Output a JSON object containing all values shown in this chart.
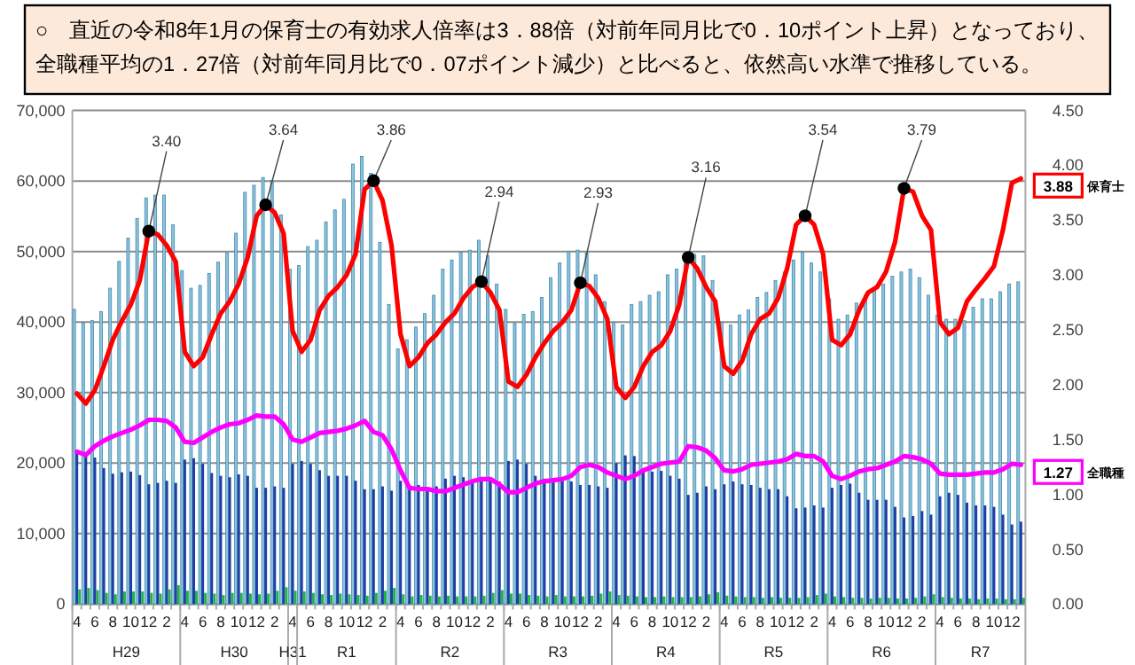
{
  "chart_data": {
    "type": "bar",
    "title": "○　直近の令和8年1月の保育士の有効求人倍率は3．88倍（対前年同月比で0．10ポイント上昇）となっており、全職種平均の1．27倍（対前年同月比で0．07ポイント減少）と比べると、依然高い水準で推移している。",
    "categories": [
      "4",
      null,
      "6",
      null,
      "8",
      null,
      "10",
      null,
      "12",
      null,
      "2",
      null,
      "4",
      null,
      "6",
      null,
      "8",
      null,
      "10",
      null,
      "12",
      null,
      "2",
      null,
      "4",
      null,
      "6",
      null,
      "8",
      null,
      "10",
      null,
      "12",
      null,
      "2",
      null,
      "4",
      null,
      "6",
      null,
      "8",
      null,
      "10",
      null,
      "12",
      null,
      "2",
      null,
      "4",
      null,
      "6",
      null,
      "8",
      null,
      "10",
      null,
      "12",
      null,
      "2",
      null,
      "4",
      null,
      "6",
      null,
      "8",
      null,
      "10",
      null,
      "12",
      null,
      "2",
      null,
      "4",
      null,
      "6",
      null,
      "8",
      null,
      "10",
      null,
      "12",
      null,
      "2",
      null,
      "4",
      null,
      "6",
      null,
      "8",
      null,
      "10",
      null,
      "12",
      null,
      "2",
      null,
      "4",
      null,
      "6",
      null,
      "8",
      null,
      "10",
      null,
      "12",
      null
    ],
    "annotations": [
      "H29",
      "H30",
      "H31",
      "R1",
      "R2",
      "R3",
      "R4",
      "R5",
      "R6",
      "R7"
    ],
    "ylim": [
      0,
      70000
    ],
    "yticks": [
      {
        "value": 0,
        "label": "0"
      },
      {
        "value": 10000,
        "label": "10,000"
      },
      {
        "value": 20000,
        "label": "20,000"
      },
      {
        "value": 30000,
        "label": "30,000"
      },
      {
        "value": 40000,
        "label": "40,000"
      },
      {
        "value": 50000,
        "label": "50,000"
      },
      {
        "value": 60000,
        "label": "60,000"
      },
      {
        "value": 70000,
        "label": "70,000"
      }
    ],
    "y2lim": [
      0,
      4.5
    ],
    "y2ticks": [
      {
        "value": 0,
        "label": "0.00"
      },
      {
        "value": 0.5,
        "label": "0.50"
      },
      {
        "value": 1,
        "label": "1.00"
      },
      {
        "value": 1.5,
        "label": "1.50"
      },
      {
        "value": 2,
        "label": "2.00"
      },
      {
        "value": 2.5,
        "label": "2.50"
      },
      {
        "value": 3,
        "label": "3.00"
      },
      {
        "value": 3.5,
        "label": "3.50"
      },
      {
        "value": 4,
        "label": "4.00"
      },
      {
        "value": 4.5,
        "label": "4.50"
      }
    ],
    "grid": "y",
    "legend": "right",
    "series": [
      {
        "color": "#8ec3da",
        "values": [
          41800,
          39900,
          40200,
          41500,
          44800,
          48600,
          51900,
          54700,
          57600,
          58000,
          58000,
          53800,
          47300,
          44800,
          45200,
          46900,
          48500,
          49800,
          52600,
          58400,
          59400,
          60500,
          60100,
          55200,
          47500,
          48000,
          50700,
          51600,
          54200,
          55900,
          57400,
          62400,
          63500,
          61100,
          51300,
          42500,
          36200,
          37500,
          39300,
          41200,
          43800,
          47500,
          48800,
          49900,
          50200,
          51600,
          49400,
          45400,
          41800,
          39800,
          41100,
          41500,
          43500,
          46300,
          48400,
          50000,
          50200,
          49800,
          46700,
          42900,
          40000,
          39600,
          42500,
          42900,
          43800,
          44300,
          46700,
          47500,
          49400,
          49600,
          49400,
          45900,
          40000,
          39600,
          41000,
          41700,
          43500,
          44200,
          45900,
          47100,
          48800,
          49900,
          48400,
          47100,
          43300,
          40400,
          41000,
          42700,
          43800,
          44800,
          45400,
          46500,
          47100,
          47500,
          46300,
          43800,
          41000,
          40400,
          40400,
          40200,
          42100,
          43300,
          43300,
          44300,
          45400,
          45700
        ]
      },
      {
        "color": "#1f3fa6",
        "values": [
          21500,
          21000,
          20800,
          19300,
          18500,
          18700,
          18800,
          18300,
          17000,
          17200,
          17500,
          17200,
          20500,
          20700,
          19900,
          18600,
          18200,
          18000,
          18400,
          18200,
          16500,
          16500,
          16700,
          16500,
          19900,
          20300,
          19900,
          19000,
          18200,
          18200,
          18200,
          17500,
          16300,
          16300,
          16700,
          16100,
          17500,
          16500,
          16900,
          16500,
          16700,
          17800,
          18200,
          18000,
          17400,
          17400,
          17500,
          17400,
          20300,
          20500,
          19900,
          18200,
          17800,
          17500,
          17500,
          17400,
          16900,
          16900,
          16700,
          16500,
          20000,
          21100,
          21000,
          19000,
          18800,
          18900,
          18200,
          17800,
          15500,
          15800,
          16700,
          16300,
          17000,
          17400,
          17000,
          16900,
          16500,
          16300,
          16300,
          15300,
          13600,
          13700,
          14000,
          13700,
          16500,
          16900,
          17100,
          15800,
          14800,
          14800,
          14800,
          13800,
          12300,
          12500,
          13200,
          12700,
          15300,
          15800,
          15500,
          14400,
          14000,
          14000,
          13800,
          12700,
          11300,
          11700
        ]
      },
      {
        "color": "#22b14c",
        "values": [
          2100,
          2300,
          2000,
          1600,
          1400,
          1800,
          1800,
          1800,
          1600,
          1500,
          2100,
          2700,
          1900,
          1900,
          1600,
          1500,
          1300,
          1600,
          1600,
          1500,
          1400,
          1500,
          1900,
          2400,
          1900,
          1800,
          1600,
          1400,
          1300,
          1500,
          1400,
          1300,
          1200,
          1600,
          1900,
          2300,
          1400,
          1100,
          1300,
          1200,
          1100,
          1200,
          1100,
          1100,
          1100,
          1200,
          1600,
          2000,
          1500,
          1500,
          1300,
          1200,
          1100,
          1300,
          1100,
          1100,
          1100,
          1200,
          1500,
          1800,
          1300,
          1200,
          1100,
          1000,
          1000,
          1100,
          1000,
          1000,
          1000,
          1100,
          1400,
          1700,
          1200,
          1100,
          1000,
          1000,
          900,
          1000,
          900,
          900,
          900,
          1000,
          1300,
          1500,
          1100,
          1000,
          900,
          900,
          800,
          900,
          900,
          800,
          800,
          900,
          1100,
          1400,
          1000,
          900,
          800,
          800,
          700,
          800,
          800,
          700,
          700,
          900
        ]
      },
      {
        "type": "line",
        "axis": "y2",
        "name": "保育士",
        "color": "#ff0000",
        "values": [
          1.92,
          1.83,
          1.95,
          2.17,
          2.41,
          2.58,
          2.73,
          2.95,
          3.4,
          3.37,
          3.27,
          3.12,
          2.3,
          2.17,
          2.25,
          2.46,
          2.65,
          2.76,
          2.92,
          3.16,
          3.54,
          3.64,
          3.57,
          3.38,
          2.49,
          2.3,
          2.41,
          2.68,
          2.81,
          2.89,
          3.0,
          3.19,
          3.78,
          3.86,
          3.68,
          3.27,
          2.46,
          2.17,
          2.25,
          2.38,
          2.46,
          2.57,
          2.65,
          2.79,
          2.89,
          2.94,
          2.84,
          2.68,
          2.03,
          1.98,
          2.09,
          2.25,
          2.38,
          2.49,
          2.57,
          2.68,
          2.93,
          2.9,
          2.79,
          2.6,
          1.98,
          1.88,
          1.98,
          2.17,
          2.3,
          2.36,
          2.49,
          2.73,
          3.16,
          3.06,
          2.89,
          2.76,
          2.17,
          2.1,
          2.22,
          2.46,
          2.6,
          2.65,
          2.79,
          3.06,
          3.46,
          3.54,
          3.46,
          3.19,
          2.41,
          2.36,
          2.46,
          2.68,
          2.84,
          2.89,
          3.03,
          3.3,
          3.79,
          3.76,
          3.54,
          3.41,
          2.57,
          2.46,
          2.52,
          2.76,
          2.87,
          2.97,
          3.08,
          3.41,
          3.84,
          3.88
        ],
        "value_labels": [
          null,
          null,
          null,
          null,
          null,
          null,
          null,
          null,
          "3.40",
          null,
          null,
          null,
          null,
          null,
          null,
          null,
          null,
          null,
          null,
          null,
          null,
          "3.64",
          null,
          null,
          null,
          null,
          null,
          null,
          null,
          null,
          null,
          null,
          null,
          "3.86",
          null,
          null,
          null,
          null,
          null,
          null,
          null,
          null,
          null,
          null,
          null,
          "2.94",
          null,
          null,
          null,
          null,
          null,
          null,
          null,
          null,
          null,
          null,
          "2.93",
          null,
          null,
          null,
          null,
          null,
          null,
          null,
          null,
          null,
          null,
          null,
          "3.16",
          null,
          null,
          null,
          null,
          null,
          null,
          null,
          null,
          null,
          null,
          null,
          null,
          "3.54",
          null,
          null,
          null,
          null,
          null,
          null,
          null,
          null,
          null,
          null,
          "3.79",
          null,
          null,
          null,
          null,
          null,
          null,
          null,
          null,
          null,
          null,
          null,
          null,
          "3.88"
        ]
      },
      {
        "type": "line",
        "axis": "y2",
        "name": "全職種",
        "color": "#ff00ff",
        "values": [
          1.39,
          1.36,
          1.44,
          1.49,
          1.53,
          1.56,
          1.59,
          1.63,
          1.68,
          1.68,
          1.67,
          1.61,
          1.48,
          1.47,
          1.52,
          1.57,
          1.61,
          1.64,
          1.65,
          1.68,
          1.72,
          1.71,
          1.71,
          1.64,
          1.5,
          1.48,
          1.52,
          1.56,
          1.57,
          1.58,
          1.6,
          1.63,
          1.67,
          1.57,
          1.54,
          1.41,
          1.22,
          1.06,
          1.05,
          1.05,
          1.03,
          1.03,
          1.06,
          1.09,
          1.12,
          1.14,
          1.14,
          1.09,
          1.02,
          1.02,
          1.06,
          1.1,
          1.12,
          1.13,
          1.14,
          1.17,
          1.25,
          1.27,
          1.25,
          1.2,
          1.17,
          1.14,
          1.17,
          1.22,
          1.25,
          1.28,
          1.29,
          1.3,
          1.44,
          1.43,
          1.4,
          1.33,
          1.22,
          1.21,
          1.23,
          1.27,
          1.28,
          1.29,
          1.3,
          1.32,
          1.37,
          1.35,
          1.35,
          1.3,
          1.17,
          1.14,
          1.17,
          1.21,
          1.23,
          1.24,
          1.27,
          1.3,
          1.35,
          1.34,
          1.32,
          1.28,
          1.19,
          1.18,
          1.18,
          1.18,
          1.19,
          1.2,
          1.2,
          1.23,
          1.28,
          1.27
        ],
        "value_labels": [
          null,
          null,
          null,
          null,
          null,
          null,
          null,
          null,
          null,
          null,
          null,
          null,
          null,
          null,
          null,
          null,
          null,
          null,
          null,
          null,
          null,
          null,
          null,
          null,
          null,
          null,
          null,
          null,
          null,
          null,
          null,
          null,
          null,
          null,
          null,
          null,
          null,
          null,
          null,
          null,
          null,
          null,
          null,
          null,
          null,
          null,
          null,
          null,
          null,
          null,
          null,
          null,
          null,
          null,
          null,
          null,
          null,
          null,
          null,
          null,
          null,
          null,
          null,
          null,
          null,
          null,
          null,
          null,
          null,
          null,
          null,
          null,
          null,
          null,
          null,
          null,
          null,
          null,
          null,
          null,
          null,
          null,
          null,
          null,
          null,
          null,
          null,
          null,
          null,
          null,
          null,
          null,
          null,
          null,
          null,
          null,
          null,
          null,
          null,
          null,
          null,
          null,
          null,
          null,
          null,
          "1.27"
        ]
      }
    ]
  }
}
